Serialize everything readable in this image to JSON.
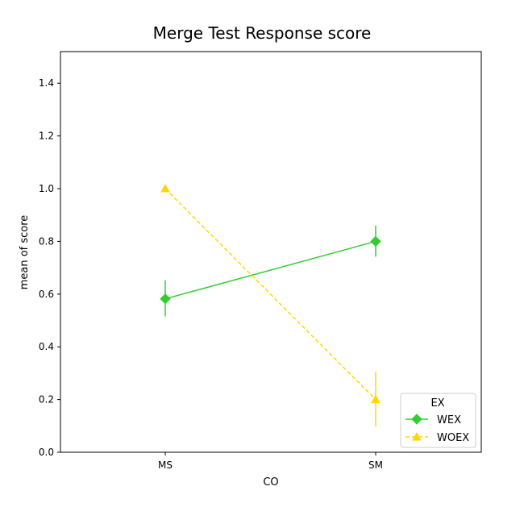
{
  "chart_data": {
    "type": "line",
    "title": "Merge Test Response score",
    "xlabel": "CO",
    "ylabel": "mean of score",
    "categories": [
      "MS",
      "SM"
    ],
    "ylim": [
      0,
      1.52
    ],
    "yticks": [
      "0.0",
      "0.2",
      "0.4",
      "0.6",
      "0.8",
      "1.0",
      "1.2",
      "1.4"
    ],
    "grid": false,
    "legend": {
      "title": "EX",
      "placement": "lower-right"
    },
    "series": [
      {
        "name": "WEX",
        "values": [
          0.582,
          0.8
        ],
        "error_low": [
          0.515,
          0.742
        ],
        "error_high": [
          0.652,
          0.86
        ],
        "color": "#33cc33",
        "marker": "diamond",
        "linestyle": "solid"
      },
      {
        "name": "WOEX",
        "values": [
          1.0,
          0.2
        ],
        "error_low": [
          1.0,
          0.098
        ],
        "error_high": [
          1.0,
          0.305
        ],
        "color": "#ffd700",
        "marker": "triangle",
        "linestyle": "dashed"
      }
    ]
  }
}
